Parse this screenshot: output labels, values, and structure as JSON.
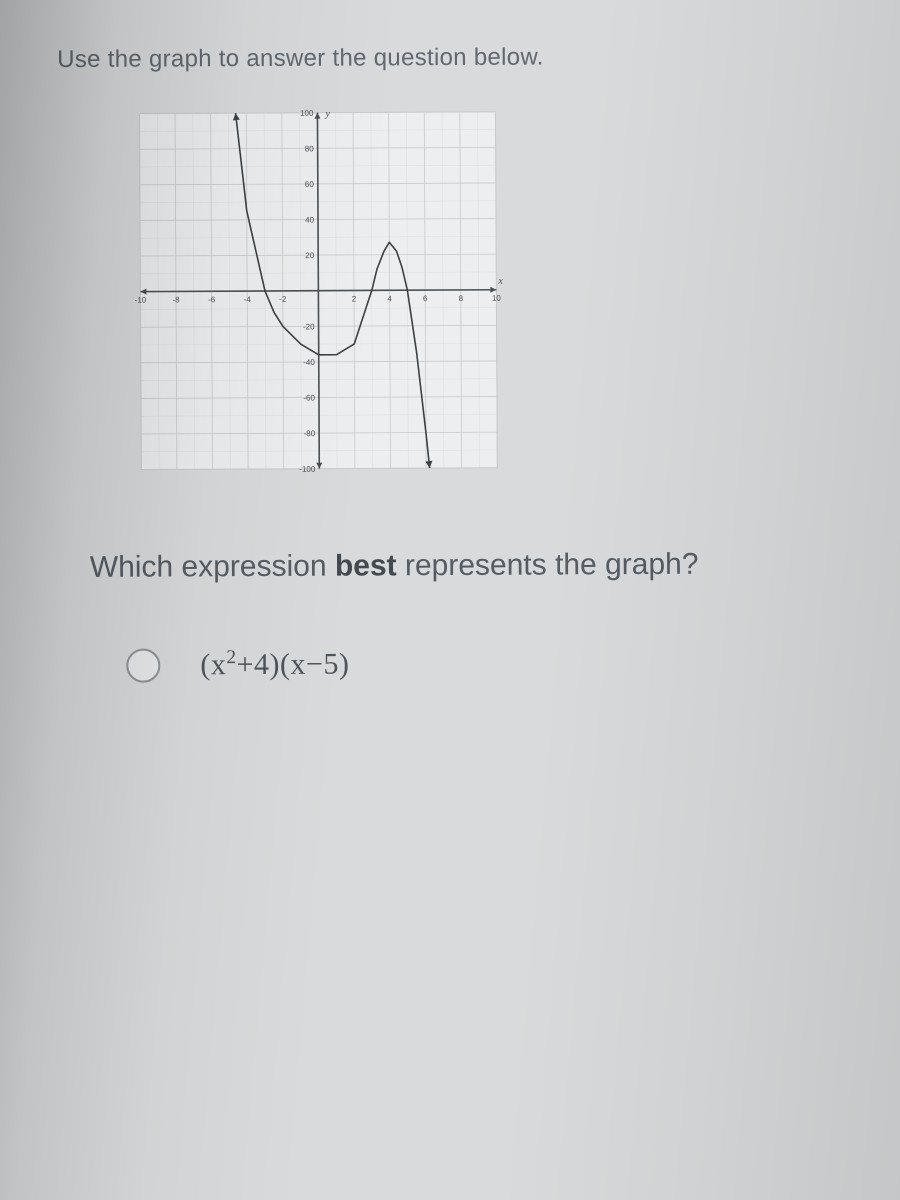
{
  "instruction": "Use the graph to answer the question below.",
  "question_prefix": "Which expression ",
  "question_bold": "best",
  "question_suffix": " represents the graph?",
  "option1_html": "(x<sup>2</sup>+4)(x−5)",
  "chart": {
    "type": "line",
    "xlim": [
      -10,
      10
    ],
    "ylim": [
      -100,
      100
    ],
    "xtick_step": 2,
    "ytick_step": 20,
    "x_tick_labels": [
      "-10",
      "-8",
      "-6",
      "-4",
      "-2",
      "",
      "2",
      "4",
      "6",
      "8",
      "10"
    ],
    "y_tick_labels_pos": [
      "20",
      "40",
      "60",
      "80",
      "100"
    ],
    "y_tick_labels_neg": [
      "-20",
      "-40",
      "-60",
      "-80",
      "-100"
    ],
    "x_axis_label": "x",
    "y_axis_label": "y",
    "background_color": "#eceeef",
    "grid_color": "#c9cccd",
    "axis_color": "#4a4f53",
    "curve_color": "#3c4146",
    "curve_width": 1.6,
    "tick_font_size": 8,
    "curve_points": [
      [
        -4.6,
        100
      ],
      [
        -4.0,
        45
      ],
      [
        -3.0,
        0
      ],
      [
        -2.5,
        -12
      ],
      [
        -2.0,
        -20
      ],
      [
        -1.0,
        -30
      ],
      [
        0.0,
        -36
      ],
      [
        1.0,
        -36
      ],
      [
        2.0,
        -30
      ],
      [
        3.0,
        0
      ],
      [
        3.3,
        12
      ],
      [
        3.7,
        22
      ],
      [
        4.0,
        27
      ],
      [
        4.4,
        22
      ],
      [
        4.7,
        13
      ],
      [
        5.0,
        0
      ],
      [
        5.5,
        -35
      ],
      [
        6.0,
        -80
      ],
      [
        6.2,
        -100
      ]
    ]
  }
}
